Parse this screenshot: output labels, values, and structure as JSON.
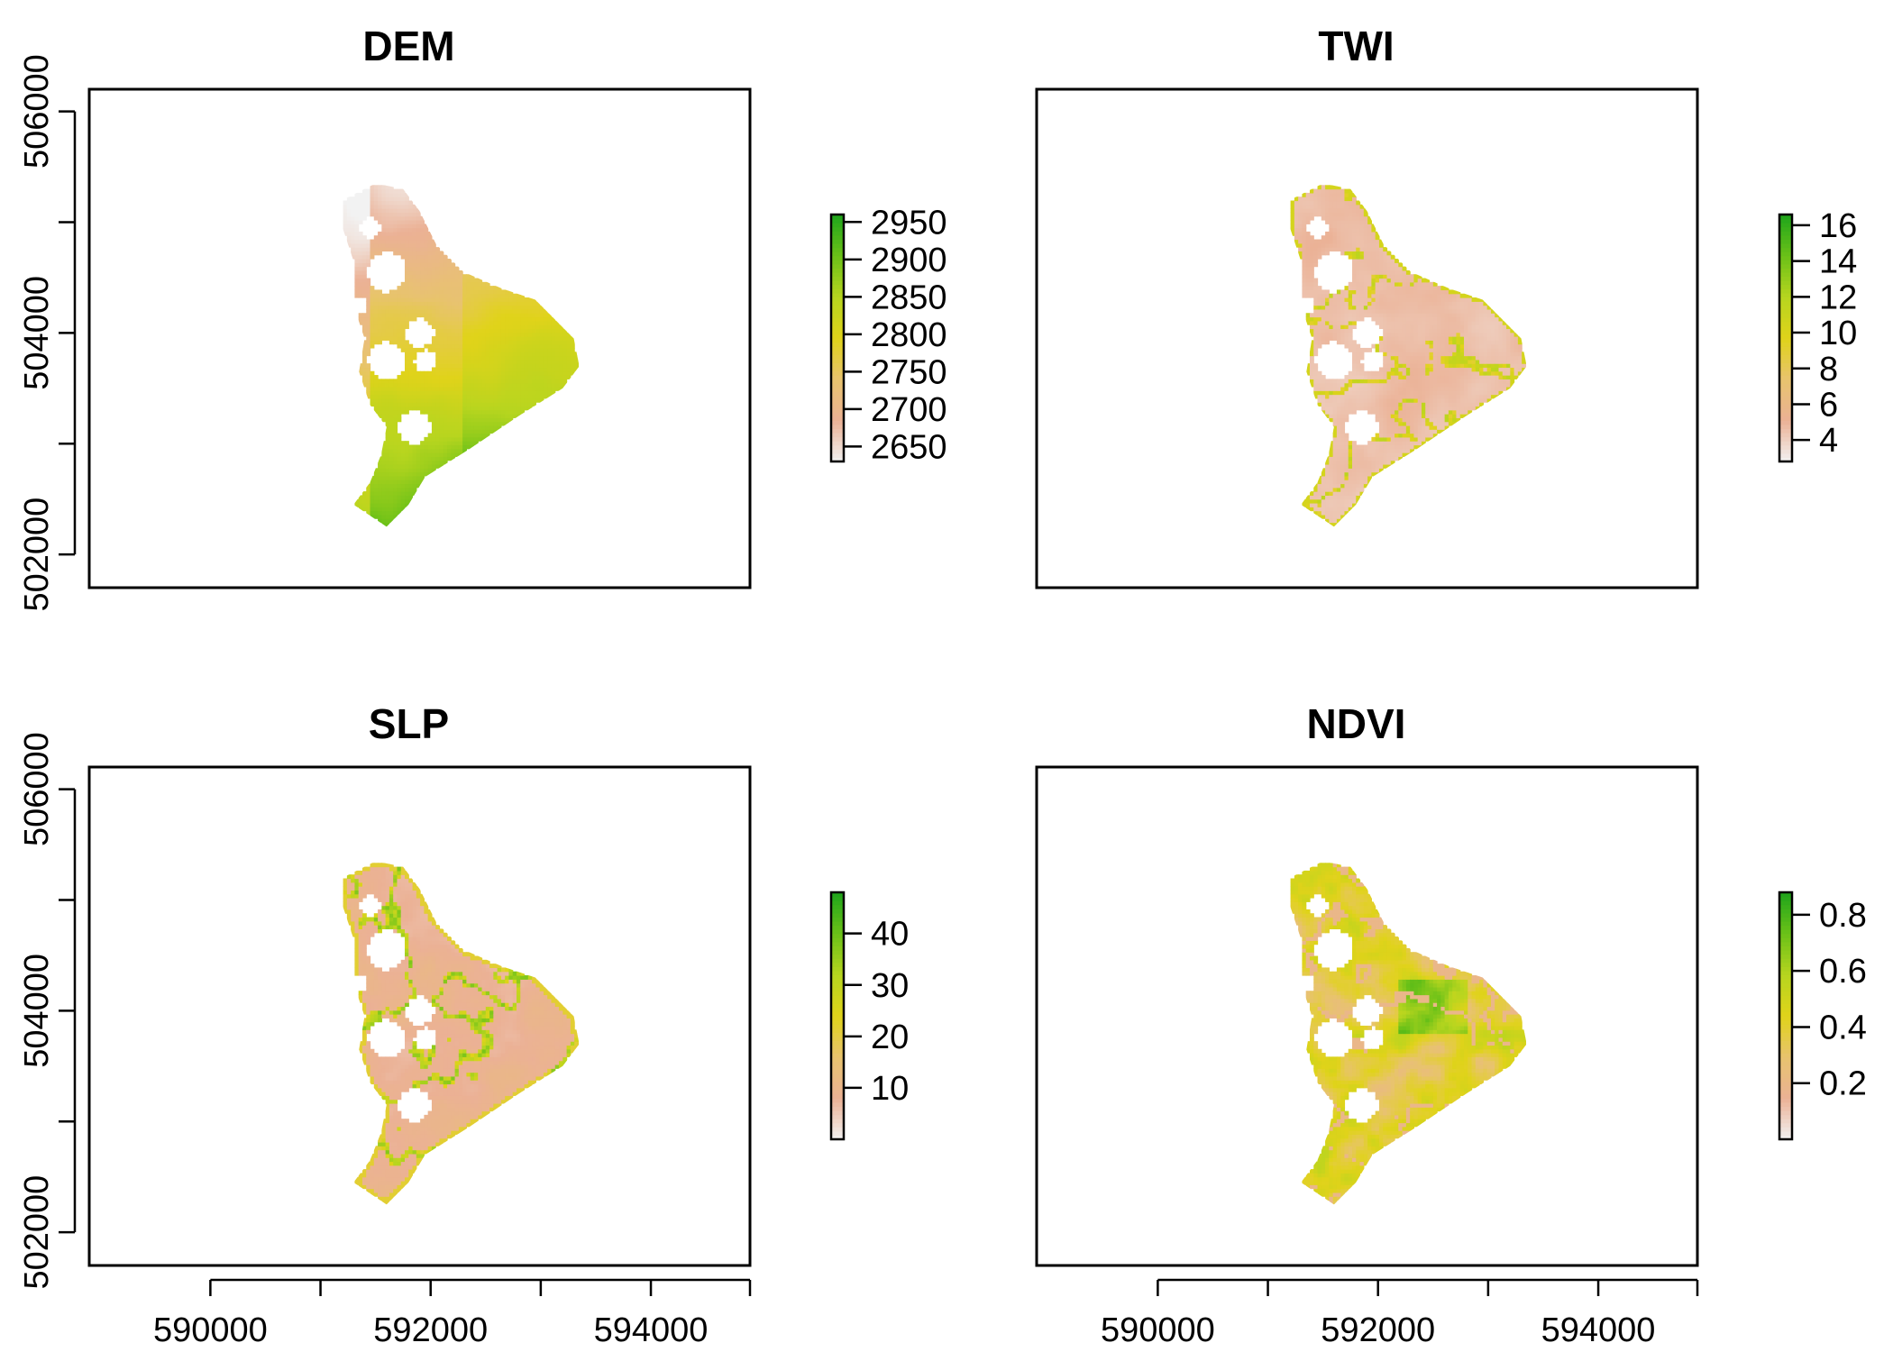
{
  "chart_data": [
    {
      "type": "heatmap",
      "title": "DEM",
      "x_ticks": [
        590000,
        592000,
        594000
      ],
      "x_ticks_shown": false,
      "y_ticks": [
        502000,
        504000,
        506000
      ],
      "y_ticks_shown": true,
      "xlim": [
        588900,
        594900
      ],
      "ylim": [
        501700,
        506200
      ],
      "legend": {
        "position": "right",
        "ticks": [
          2650,
          2700,
          2750,
          2800,
          2850,
          2900,
          2950
        ],
        "min": 2630,
        "max": 2960
      },
      "colormap": [
        "#f2f2f2",
        "#ebb195",
        "#e8c36e",
        "#e0d31a",
        "#b7d51f",
        "#6bc118",
        "#1fa51b"
      ],
      "pattern": "elevation"
    },
    {
      "type": "heatmap",
      "title": "TWI",
      "x_ticks": [
        590000,
        592000,
        594000
      ],
      "x_ticks_shown": false,
      "y_ticks": [
        502000,
        504000,
        506000
      ],
      "y_ticks_shown": false,
      "xlim": [
        588900,
        594900
      ],
      "ylim": [
        501700,
        506200
      ],
      "legend": {
        "position": "right",
        "ticks": [
          4,
          6,
          8,
          10,
          12,
          14,
          16
        ],
        "min": 2.8,
        "max": 16.6
      },
      "colormap": [
        "#f2f2f2",
        "#ebb195",
        "#e8c36e",
        "#e0d31a",
        "#b7d51f",
        "#6bc118",
        "#1fa51b"
      ],
      "pattern": "wetness"
    },
    {
      "type": "heatmap",
      "title": "SLP",
      "x_ticks": [
        590000,
        592000,
        594000
      ],
      "x_ticks_shown": true,
      "y_ticks": [
        502000,
        504000,
        506000
      ],
      "y_ticks_shown": true,
      "xlim": [
        588900,
        594900
      ],
      "ylim": [
        501700,
        506200
      ],
      "legend": {
        "position": "right",
        "ticks": [
          10,
          20,
          30,
          40
        ],
        "min": 0,
        "max": 48
      },
      "colormap": [
        "#f2f2f2",
        "#ebb195",
        "#e8c36e",
        "#e0d31a",
        "#b7d51f",
        "#6bc118",
        "#1fa51b"
      ],
      "pattern": "slope"
    },
    {
      "type": "heatmap",
      "title": "NDVI",
      "x_ticks": [
        590000,
        592000,
        594000
      ],
      "x_ticks_shown": true,
      "y_ticks": [
        502000,
        504000,
        506000
      ],
      "y_ticks_shown": false,
      "xlim": [
        588900,
        594900
      ],
      "ylim": [
        501700,
        506200
      ],
      "legend": {
        "position": "right",
        "ticks": [
          0.2,
          0.4,
          0.6,
          0.8
        ],
        "min": 0,
        "max": 0.88
      },
      "colormap": [
        "#f2f2f2",
        "#ebb195",
        "#e8c36e",
        "#e0d31a",
        "#b7d51f",
        "#6bc118",
        "#1fa51b"
      ],
      "pattern": "ndvi"
    }
  ],
  "region_outline": [
    [
      591200,
      505200
    ],
    [
      591500,
      505350
    ],
    [
      591750,
      505300
    ],
    [
      591900,
      505100
    ],
    [
      592050,
      504800
    ],
    [
      592300,
      504550
    ],
    [
      592650,
      504400
    ],
    [
      592950,
      504300
    ],
    [
      593100,
      504150
    ],
    [
      593300,
      503950
    ],
    [
      593350,
      503700
    ],
    [
      593200,
      503500
    ],
    [
      592800,
      503250
    ],
    [
      592350,
      502950
    ],
    [
      591950,
      502700
    ],
    [
      591800,
      502450
    ],
    [
      591600,
      502250
    ],
    [
      591300,
      502450
    ],
    [
      591450,
      502650
    ],
    [
      591550,
      502900
    ],
    [
      591600,
      503150
    ],
    [
      591450,
      503350
    ],
    [
      591350,
      503650
    ],
    [
      591400,
      503950
    ],
    [
      591300,
      504250
    ],
    [
      591300,
      504650
    ],
    [
      591200,
      504950
    ]
  ],
  "holes": [
    {
      "x": 591450,
      "y": 504950,
      "r": 100
    },
    {
      "x": 591600,
      "y": 504550,
      "r": 180
    },
    {
      "x": 591350,
      "y": 504250,
      "r": 80
    },
    {
      "x": 591900,
      "y": 504000,
      "r": 130
    },
    {
      "x": 591600,
      "y": 503750,
      "r": 170
    },
    {
      "x": 591950,
      "y": 503750,
      "r": 100
    },
    {
      "x": 591850,
      "y": 503150,
      "r": 150
    }
  ]
}
